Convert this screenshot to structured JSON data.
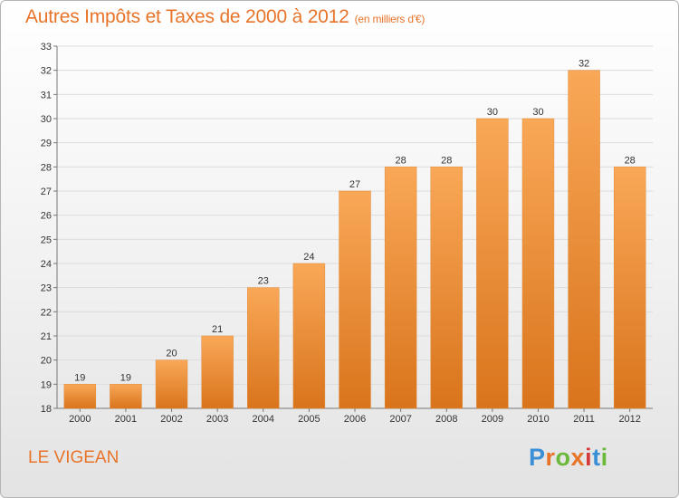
{
  "header": {
    "title": "Autres Impôts et Taxes de 2000 à 2012",
    "unit": "(en milliers d'€)"
  },
  "footer": {
    "location": "LE VIGEAN",
    "logo": "Proxiti"
  },
  "colors": {
    "accent": "#e8742a",
    "bar_top": "#f9a857",
    "bar_bottom": "#d9741c"
  },
  "chart_data": {
    "type": "bar",
    "title": "Autres Impôts et Taxes de 2000 à 2012",
    "xlabel": "",
    "ylabel": "",
    "categories": [
      "2000",
      "2001",
      "2002",
      "2003",
      "2004",
      "2005",
      "2006",
      "2007",
      "2008",
      "2009",
      "2010",
      "2011",
      "2012"
    ],
    "values": [
      19,
      19,
      20,
      21,
      23,
      24,
      27,
      28,
      28,
      30,
      30,
      32,
      28
    ],
    "ylim": [
      18,
      33
    ],
    "yticks": [
      18,
      19,
      20,
      21,
      22,
      23,
      24,
      25,
      26,
      27,
      28,
      29,
      30,
      31,
      32,
      33
    ],
    "grid": true,
    "data_labels": true
  }
}
